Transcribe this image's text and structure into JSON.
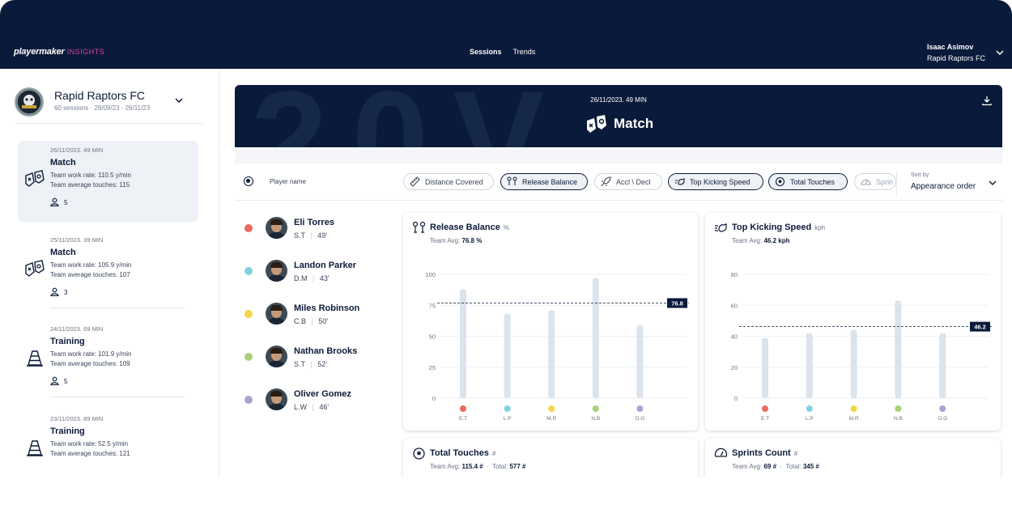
{
  "app": {
    "logo": "playermaker",
    "logo_suffix": "INSIGHTS"
  },
  "nav": {
    "tabs": [
      "Sessions",
      "Trends"
    ],
    "active": "Sessions"
  },
  "user": {
    "name": "Isaac Asimov",
    "team": "Rapid Raptors FC"
  },
  "club": {
    "name": "Rapid Raptors FC",
    "meta": "60 sessions · 28/09/23 - 26/11/23",
    "badge_text": "RAPID RAPTORS FC"
  },
  "sessions": [
    {
      "date": "26/11/2023. 49 MIN",
      "type": "Match",
      "line1": "Team work rate: 110.5 y/min",
      "line2": "Team average touches: 115",
      "players": "5",
      "icon": "match-icon",
      "active": true
    },
    {
      "date": "25/11/2023. 39 MIN",
      "type": "Match",
      "line1": "Team work rate: 105.9 y/min",
      "line2": "Team average touches: 107",
      "players": "3",
      "icon": "match-icon",
      "active": false
    },
    {
      "date": "24/11/2023. 69 MIN",
      "type": "Training",
      "line1": "Team work rate: 101.9 y/min",
      "line2": "Team average touches: 109",
      "players": "5",
      "icon": "cone-icon",
      "active": false
    },
    {
      "date": "23/11/2023. 89 MIN",
      "type": "Training",
      "line1": "Team work rate: 52.5 y/min",
      "line2": "Team average touches: 121",
      "players": "",
      "icon": "cone-icon",
      "active": false
    }
  ],
  "hero": {
    "date": "26/11/2023. 49 MIN",
    "title": "Match"
  },
  "filters": {
    "player_name_header": "Player name",
    "chips": [
      {
        "label": "Distance Covered",
        "icon": "ruler-icon",
        "selected": false
      },
      {
        "label": "Release Balance",
        "icon": "release-balance-icon",
        "selected": true
      },
      {
        "label": "Accl \\ Decl",
        "icon": "rocket-icon",
        "selected": false
      },
      {
        "label": "Top Kicking Speed",
        "icon": "kick-speed-icon",
        "selected": true
      },
      {
        "label": "Total Touches",
        "icon": "ball-icon",
        "selected": true
      },
      {
        "label": "Sprin",
        "icon": "speedometer-icon",
        "selected": false
      }
    ],
    "sort_label": "Sort by",
    "sort_value": "Appearance order"
  },
  "players": [
    {
      "name": "Eli Torres",
      "pos": "S.T",
      "mins": "49'",
      "color": "#ec6a5e",
      "abbr": "E.T"
    },
    {
      "name": "Landon Parker",
      "pos": "D.M",
      "mins": "43'",
      "color": "#7fd3e0",
      "abbr": "L.P"
    },
    {
      "name": "Miles Robinson",
      "pos": "C.B",
      "mins": "50'",
      "color": "#f5d547",
      "abbr": "M.R"
    },
    {
      "name": "Nathan Brooks",
      "pos": "S.T",
      "mins": "52'",
      "color": "#a9d07a",
      "abbr": "N.B"
    },
    {
      "name": "Oliver Gomez",
      "pos": "L.W",
      "mins": "46'",
      "color": "#a8a4d4",
      "abbr": "O.G"
    }
  ],
  "cards": [
    {
      "title": "Release Balance",
      "unit": "%",
      "avg_label": "Team Avg:",
      "avg_value": "76.8 %",
      "icon": "release-balance-icon"
    },
    {
      "title": "Top Kicking Speed",
      "unit": "kph",
      "avg_label": "Team Avg:",
      "avg_value": "46.2 kph",
      "icon": "kick-speed-icon"
    },
    {
      "title": "Total Touches",
      "unit": "#",
      "avg_label": "Team Avg:",
      "avg_value": "115.4 #",
      "total_label": "Total:",
      "total_value": "577 #",
      "icon": "ball-icon"
    },
    {
      "title": "Sprints Count",
      "unit": "#",
      "avg_label": "Team Avg:",
      "avg_value": "69 #",
      "total_label": "Total:",
      "total_value": "345 #",
      "icon": "speedometer-icon"
    }
  ],
  "chart_data": [
    {
      "type": "bar",
      "title": "Release Balance",
      "categories": [
        "E.T",
        "L.P",
        "M.R",
        "N.B",
        "O.G"
      ],
      "values": [
        88,
        68,
        71,
        97,
        59
      ],
      "ylim": [
        0,
        100
      ],
      "yticks": [
        0,
        25,
        50,
        75,
        100
      ],
      "reference_line": 76.8,
      "reference_label": "76.8",
      "bar_color": "#dbe3ec"
    },
    {
      "type": "bar",
      "title": "Top Kicking Speed",
      "categories": [
        "E.T",
        "L.P",
        "M.R",
        "N.B",
        "O.G"
      ],
      "values": [
        39,
        42,
        44,
        63,
        42
      ],
      "ylim": [
        0,
        80
      ],
      "yticks": [
        0,
        20,
        40,
        60,
        80
      ],
      "reference_line": 46.2,
      "reference_label": "46.2",
      "bar_color": "#dbe3ec"
    }
  ]
}
